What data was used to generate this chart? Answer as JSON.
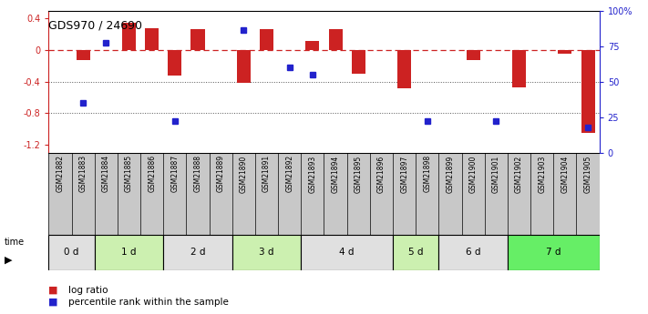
{
  "title": "GDS970 / 24690",
  "samples": [
    "GSM21882",
    "GSM21883",
    "GSM21884",
    "GSM21885",
    "GSM21886",
    "GSM21887",
    "GSM21888",
    "GSM21889",
    "GSM21890",
    "GSM21891",
    "GSM21892",
    "GSM21893",
    "GSM21894",
    "GSM21895",
    "GSM21896",
    "GSM21897",
    "GSM21898",
    "GSM21899",
    "GSM21900",
    "GSM21901",
    "GSM21902",
    "GSM21903",
    "GSM21904",
    "GSM21905"
  ],
  "log_ratio": [
    0.0,
    -0.13,
    0.0,
    0.35,
    0.28,
    -0.32,
    0.27,
    0.0,
    -0.42,
    0.27,
    0.0,
    0.12,
    0.27,
    -0.3,
    0.0,
    -0.48,
    0.0,
    0.0,
    -0.13,
    0.0,
    -0.47,
    0.0,
    -0.05,
    -1.05
  ],
  "percentile_rank": [
    null,
    35,
    77,
    null,
    null,
    22,
    null,
    null,
    86,
    null,
    60,
    55,
    null,
    null,
    null,
    null,
    22,
    null,
    null,
    22,
    null,
    null,
    null,
    18
  ],
  "time_groups": [
    {
      "label": "0 d",
      "start": 0,
      "end": 2,
      "color": "#e0e0e0"
    },
    {
      "label": "1 d",
      "start": 2,
      "end": 5,
      "color": "#ccf0b0"
    },
    {
      "label": "2 d",
      "start": 5,
      "end": 8,
      "color": "#e0e0e0"
    },
    {
      "label": "3 d",
      "start": 8,
      "end": 11,
      "color": "#ccf0b0"
    },
    {
      "label": "4 d",
      "start": 11,
      "end": 15,
      "color": "#e0e0e0"
    },
    {
      "label": "5 d",
      "start": 15,
      "end": 17,
      "color": "#ccf0b0"
    },
    {
      "label": "6 d",
      "start": 17,
      "end": 20,
      "color": "#e0e0e0"
    },
    {
      "label": "7 d",
      "start": 20,
      "end": 24,
      "color": "#66ee66"
    }
  ],
  "ylim_left": [
    -1.3,
    0.5
  ],
  "ylim_right": [
    0,
    100
  ],
  "bar_color": "#cc2222",
  "dot_color": "#2222cc",
  "zero_line_color": "#cc2222",
  "grid_line_color": "#555555",
  "bg_color": "#ffffff",
  "label_bg_color": "#c8c8c8"
}
